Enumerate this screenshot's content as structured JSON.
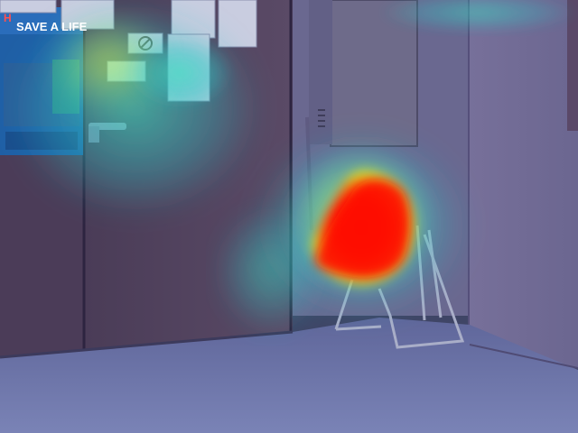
{
  "scene": {
    "description_kind": "photo-with-attention-heatmap",
    "poster": {
      "headline": "SAVE A LIFE"
    },
    "heatmap": {
      "colormap": "jet",
      "hotspot": "chair-region",
      "peak_color": "#ff0000",
      "mid_color": "#ffff00",
      "low_color": "#00ffff"
    },
    "colors": {
      "wall_left": "#4a3f5c",
      "door": "#4e3f58",
      "wall_right": "#6e6a8c",
      "cabinet": "#6d6a86",
      "floor": "#6f77a8",
      "poster_bg": "#1e62a8"
    }
  }
}
